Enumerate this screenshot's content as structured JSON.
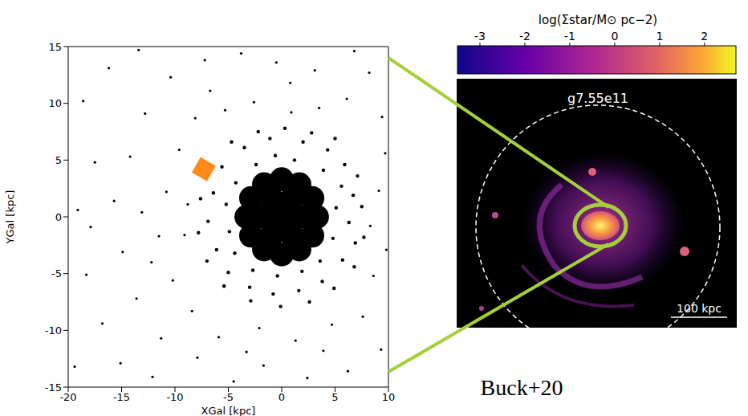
{
  "chart_data": [
    {
      "type": "scatter",
      "xlabel": "XGal [kpc]",
      "ylabel": "YGal [kpc]",
      "xlim": [
        -20,
        10
      ],
      "ylim": [
        -15,
        15
      ],
      "xticks": [
        -20,
        -15,
        -10,
        -5,
        0,
        5,
        10
      ],
      "yticks": [
        -15,
        -10,
        -5,
        0,
        5,
        10,
        15
      ],
      "series": [
        {
          "color": "#000000",
          "marker": "circle",
          "x": [
            0,
            1.7,
            0.85,
            -0.85,
            -1.7,
            -0.85,
            0.85,
            3.3,
            2.86,
            1.65,
            0,
            -1.65,
            -2.86,
            -3.3,
            -2.86,
            -1.65,
            0,
            1.65,
            2.86
          ],
          "values": [
            0,
            0,
            1.47,
            1.47,
            0,
            -1.47,
            -1.47,
            0,
            1.65,
            2.86,
            3.3,
            2.86,
            1.65,
            0,
            -1.65,
            -2.86,
            -3.3,
            -2.86,
            -1.65
          ]
        },
        {
          "color": "#000000",
          "marker": "circle",
          "x": [
            5.1,
            4.8,
            5.6,
            3.9,
            1.2,
            -0.6,
            -2.4,
            -4.3,
            -5.2,
            -4.9,
            -4.4,
            -2.7,
            -0.4,
            1.9,
            3.6,
            6.3,
            6.7,
            5.9,
            4.3,
            2.0,
            -1.1,
            -3.5,
            -5.6,
            -6.4,
            -6.9,
            -6.1,
            -5.0,
            -3.0,
            -0.8,
            1.6,
            3.8,
            5.7,
            6.9,
            7.5,
            7.1,
            5.0,
            2.8,
            0.3,
            -2.2,
            -4.7,
            -6.8,
            -7.6,
            -7.8,
            -7.0,
            -5.4,
            -2.9,
            -0.1,
            2.6,
            4.9,
            6.8,
            7.7
          ],
          "values": [
            0.8,
            -1.9,
            2.7,
            4.1,
            5.0,
            5.4,
            4.6,
            3.0,
            1.1,
            -1.3,
            -3.2,
            -4.7,
            -5.2,
            -4.8,
            -3.9,
            -0.5,
            1.9,
            4.6,
            5.9,
            6.6,
            6.9,
            6.1,
            4.4,
            2.1,
            -0.4,
            -2.9,
            -4.9,
            -6.2,
            -6.8,
            -6.5,
            -5.7,
            -3.8,
            -2.3,
            0.9,
            3.6,
            6.9,
            7.4,
            7.8,
            7.5,
            6.6,
            4.5,
            1.6,
            -1.4,
            -3.9,
            -6.1,
            -7.4,
            -7.9,
            -7.5,
            -6.3,
            -4.4,
            -1.8
          ]
        },
        {
          "color": "#000000",
          "marker": "circle",
          "x": [
            9.1,
            8.6,
            9.4,
            8.2,
            6.1,
            3.5,
            0.8,
            -2.6,
            -5.3,
            -8.1,
            -9.6,
            -10.8,
            -11.5,
            -10.2,
            -8.4,
            -5.9,
            -2.1,
            1.3,
            4.7,
            7.6,
            9.3,
            6.2,
            2.4,
            -1.7,
            -4.5,
            -7.9,
            -11.3,
            -13.6,
            -14.9,
            -15.7,
            -14.2,
            -12.8,
            -10.4,
            -7.2,
            -3.8,
            -0.5,
            3.1,
            6.8,
            9.7,
            9.8,
            -16.8,
            -18.3,
            -19.1,
            -17.5,
            -18.6,
            -16.2,
            -13.4,
            -19.4,
            -15.1,
            -12.1,
            -17.9,
            -13.1,
            -12.2,
            -9.1,
            -8.8,
            8.3,
            3.9,
            -3.3,
            -6.7,
            0.9
          ],
          "values": [
            2.3,
            -5.2,
            8.8,
            12.7,
            10.4,
            9.6,
            11.8,
            10.1,
            9.4,
            8.7,
            5.9,
            2.2,
            -1.7,
            -5.6,
            -8.3,
            -10.6,
            -9.8,
            -10.9,
            -9.5,
            -8.8,
            -11.7,
            -13.6,
            -14.2,
            -13.1,
            -14.5,
            -12.4,
            -10.7,
            -7.2,
            -3.1,
            1.4,
            5.3,
            9.1,
            12.3,
            13.8,
            14.4,
            13.6,
            12.9,
            14.6,
            5.6,
            -2.9,
            -9.4,
            -5.1,
            0.6,
            4.8,
            10.2,
            13.1,
            14.7,
            -13.2,
            -12.9,
            -14.1,
            -0.9,
            0.4,
            -4.0,
            -1.6,
            1.1,
            -0.8,
            -11.8,
            -11.9,
            11.1,
            9.2
          ]
        },
        {
          "color": "#ff8c1a",
          "marker": "square",
          "x": [
            -7.3
          ],
          "values": [
            4.2
          ]
        }
      ]
    },
    {
      "type": "image",
      "title": "g7.55e11",
      "scale_bar": "100 kpc",
      "caption": "Buck+20",
      "colorbar": {
        "label": "log(Σstar/M⊙ pc−2)",
        "range": [
          -3.5,
          2.7
        ],
        "ticks": [
          -3,
          -2,
          -1,
          0,
          1,
          2
        ]
      }
    }
  ]
}
